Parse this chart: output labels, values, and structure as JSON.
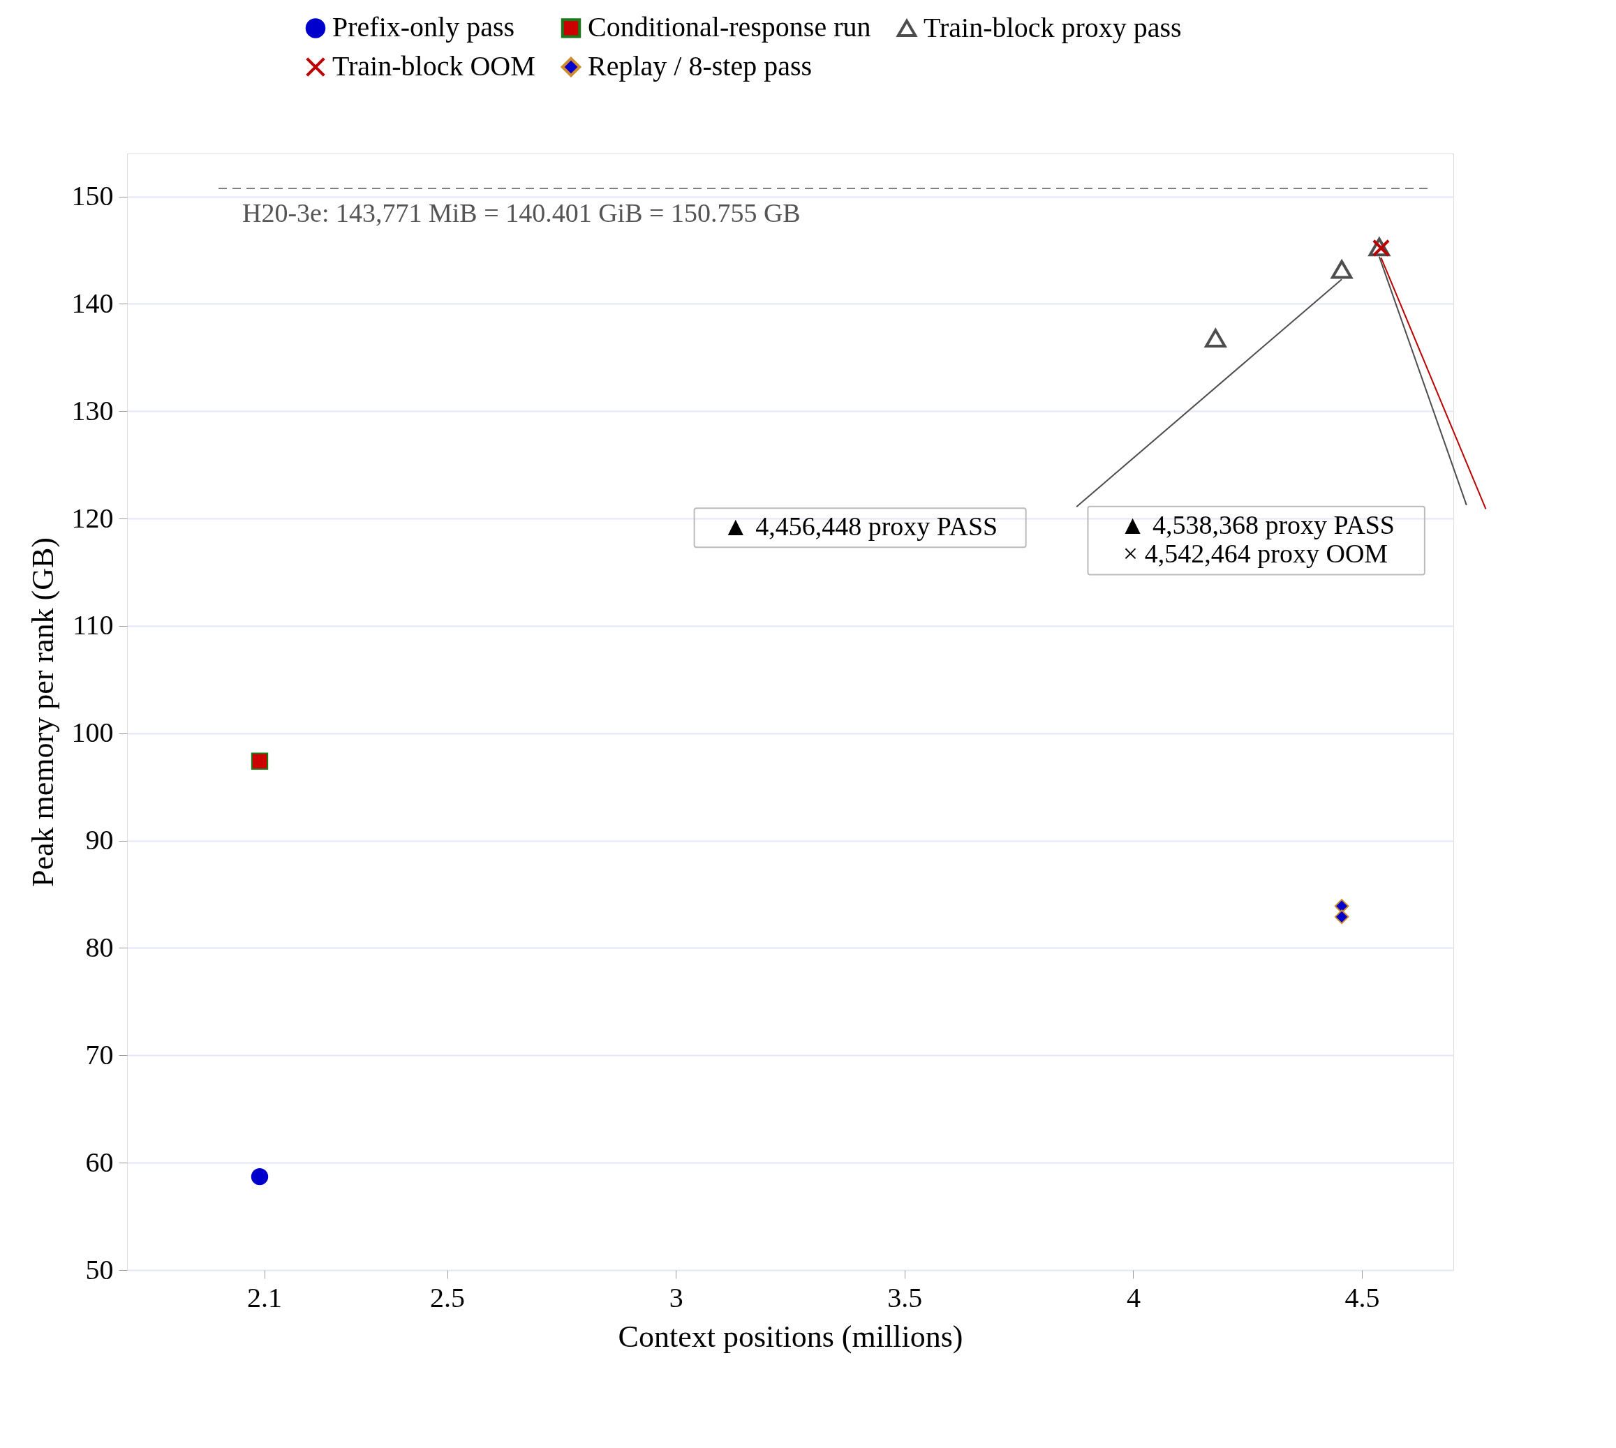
{
  "chart_data": {
    "type": "scatter",
    "xlabel": "Context positions (millions)",
    "ylabel": "Peak memory per rank (GB)",
    "xlim": [
      1.8,
      4.7
    ],
    "ylim": [
      50,
      154
    ],
    "xticks": [
      2.1,
      2.5,
      3,
      3.5,
      4,
      4.5
    ],
    "yticks": [
      50,
      60,
      70,
      80,
      90,
      100,
      110,
      120,
      130,
      140,
      150
    ],
    "grid": "y",
    "legend": "top",
    "series": [
      {
        "name": "Prefix-only pass",
        "color": "#0000cc",
        "marker": "circle",
        "x": [
          2.09
        ],
        "values": [
          58.7
        ]
      },
      {
        "name": "Conditional-response run",
        "color": "#cc0000",
        "marker": "square",
        "x": [
          2.09
        ],
        "values": [
          97.4
        ]
      },
      {
        "name": "Train-block proxy pass",
        "color": "#4d4d4d",
        "marker": "triangle",
        "x": [
          4.18,
          4.456,
          4.538
        ],
        "values": [
          136.8,
          143.2,
          145.3
        ]
      },
      {
        "name": "Train-block OOM",
        "color": "#bb0000",
        "marker": "cross",
        "x": [
          4.542
        ],
        "values": [
          145.2
        ]
      },
      {
        "name": "Replay / 8-step pass",
        "color": "#0000cc",
        "marker": "diamond",
        "x": [
          4.456,
          4.456
        ],
        "values": [
          83.9,
          82.9
        ]
      }
    ],
    "ref_lines": [
      {
        "axis": "y",
        "value": 150.755,
        "label": "H20-3e: 143,771 MiB = 140.401 GiB = 150.755 GB",
        "color": "#808080",
        "line_style": "dashed"
      }
    ],
    "annotations": [
      "▲ 4,456,448 proxy PASS",
      "▲ 4,538,368 proxy PASS",
      "× 4,542,464 proxy OOM"
    ]
  }
}
